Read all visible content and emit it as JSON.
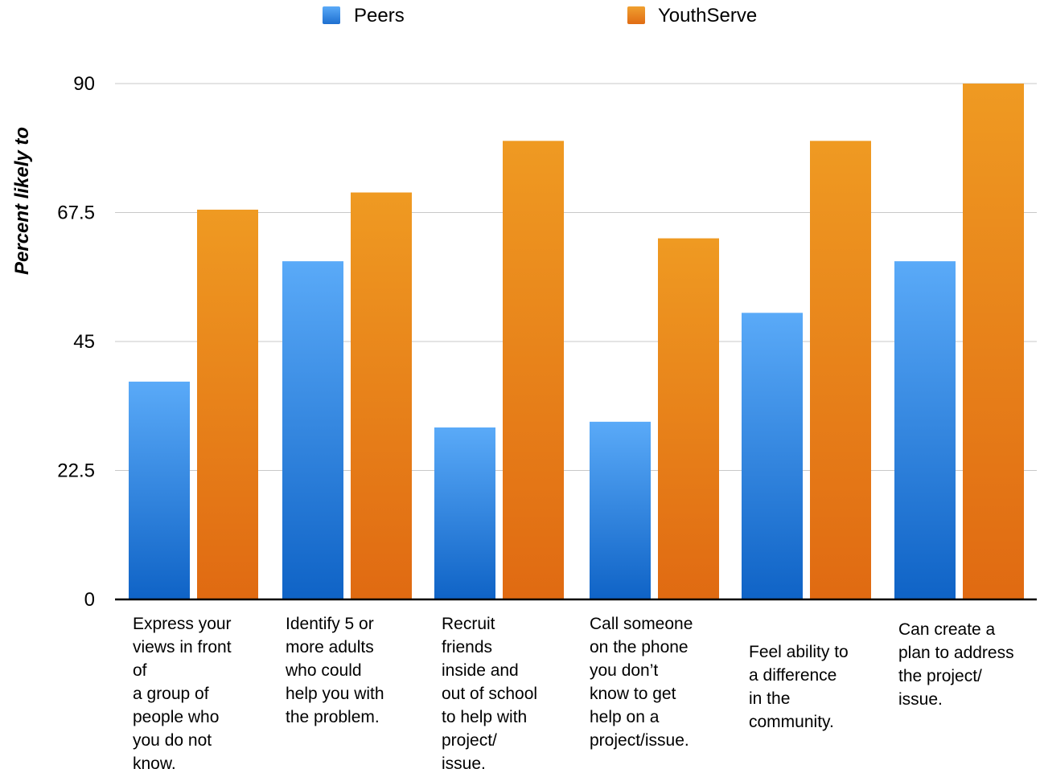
{
  "chart_data": {
    "type": "bar",
    "title": "",
    "xlabel": "",
    "ylabel": "Percent likely to",
    "ylim": [
      0,
      90
    ],
    "yticks": [
      "0",
      "22.5",
      "45",
      "67.5",
      "90"
    ],
    "grid": true,
    "legend_position": "top",
    "categories": [
      "Express your\nviews in front\nof\na group of\npeople who\nyou do not\nknow.",
      "Identify 5 or\nmore adults\nwho could\nhelp you with\nthe problem.",
      "Recruit\nfriends\ninside and\nout of school\nto help with\nproject/\nissue.",
      "Call someone\non the phone\nyou don’t\nknow to get\nhelp on a\nproject/issue.",
      "Feel ability to\na difference\nin the\ncommunity.",
      "Can create a\nplan to address\nthe project/\nissue."
    ],
    "series": [
      {
        "name": "Peers",
        "color": "#3a8fe6",
        "values": [
          38,
          59,
          30,
          31,
          50,
          59
        ]
      },
      {
        "name": "YouthServe",
        "color": "#ea8a1d",
        "values": [
          68,
          71,
          80,
          63,
          80,
          90
        ]
      }
    ]
  }
}
